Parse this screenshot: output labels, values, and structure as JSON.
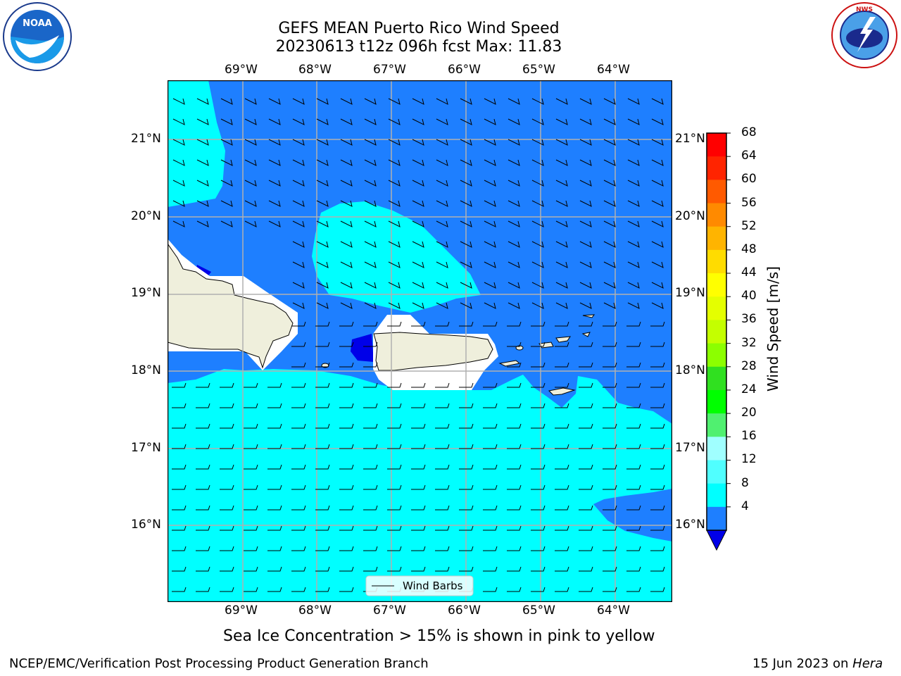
{
  "header": {
    "title_line1": "GEFS MEAN Puerto Rico Wind Speed",
    "title_line2": "20230613 t12z 096h fcst   Max: 11.83"
  },
  "logos": {
    "left": "NOAA",
    "left_ring_text": "NATIONAL OCEANIC AND ATMOSPHERIC ADMINISTRATION",
    "left_ring_bottom": "U.S. DEPARTMENT OF COMMERCE",
    "right_ring_text": "NATIONAL WEATHER SERVICE"
  },
  "map": {
    "lon_labels": [
      "69°W",
      "68°W",
      "67°W",
      "66°W",
      "65°W",
      "64°W"
    ],
    "lat_labels": [
      "21°N",
      "20°N",
      "19°N",
      "18°N",
      "17°N",
      "16°N"
    ],
    "legend_label": "Wind Barbs",
    "colors": {
      "light_cyan": "#00ffff",
      "blue": "#1e7fff",
      "dark_blue": "#0000e8",
      "land": "#efefdc"
    }
  },
  "colorbar": {
    "title": "Wind Speed [m/s]",
    "tick_labels": [
      "68",
      "64",
      "60",
      "56",
      "52",
      "48",
      "44",
      "40",
      "36",
      "32",
      "28",
      "24",
      "20",
      "16",
      "12",
      "8",
      "4"
    ],
    "colors": [
      "#ff0000",
      "#ff2400",
      "#ff5a00",
      "#ff8a00",
      "#ffb400",
      "#ffdc00",
      "#ffff00",
      "#e4ff00",
      "#c4ff00",
      "#8cff00",
      "#30e020",
      "#00ff00",
      "#50f070",
      "#a0ffff",
      "#50ffff",
      "#00ffff",
      "#1e7fff"
    ],
    "extend_color": "#0000e8"
  },
  "caption": "Sea Ice Concentration > 15% is shown in pink to yellow",
  "footer": {
    "left": "NCEP/EMC/Verification Post Processing Product Generation Branch",
    "right_date": "15 Jun 2023 on ",
    "right_host": "Hera"
  }
}
